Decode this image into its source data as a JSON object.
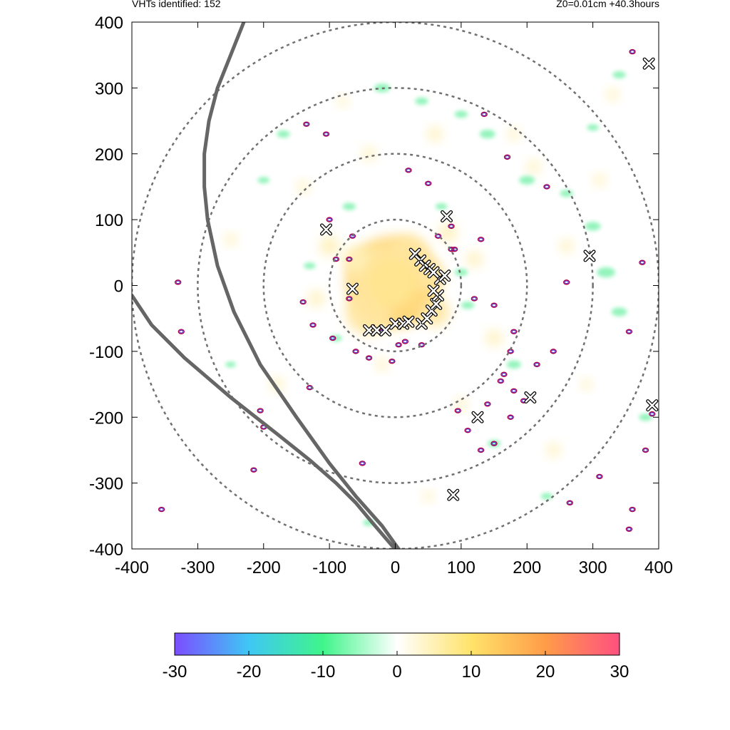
{
  "header": {
    "left": "VHTs identified: 152",
    "right": "Z0=0.01cm  +40.3hours"
  },
  "chart_data": {
    "type": "heatmap",
    "title": "",
    "xlabel": "",
    "ylabel": "",
    "xlim": [
      -400,
      400
    ],
    "ylim": [
      -400,
      400
    ],
    "x_ticks": [
      "-400",
      "-300",
      "-200",
      "-100",
      "0",
      "100",
      "200",
      "300",
      "400"
    ],
    "y_ticks": [
      "400",
      "300",
      "200",
      "100",
      "0",
      "-100",
      "-200",
      "-300",
      "-400"
    ],
    "grid": false,
    "range_rings": [
      100,
      200,
      300,
      400
    ],
    "vhts_identified": 152,
    "colorbar": {
      "min": -30,
      "max": 30,
      "ticks": [
        "-30",
        "-20",
        "-10",
        "0",
        "10",
        "20",
        "30"
      ],
      "colors": [
        "#7b4dff",
        "#3fc7f5",
        "#3ff58a",
        "#ffffff",
        "#ffe36a",
        "#ff9c48",
        "#ff5080"
      ]
    },
    "vht_markers": [
      [
        -105,
        85
      ],
      [
        -65,
        -5
      ],
      [
        -40,
        -68
      ],
      [
        -28,
        -68
      ],
      [
        -15,
        -68
      ],
      [
        0,
        -58
      ],
      [
        12,
        -58
      ],
      [
        20,
        -55
      ],
      [
        40,
        -58
      ],
      [
        48,
        -50
      ],
      [
        55,
        -38
      ],
      [
        62,
        -28
      ],
      [
        65,
        -15
      ],
      [
        58,
        -8
      ],
      [
        68,
        10
      ],
      [
        75,
        15
      ],
      [
        30,
        48
      ],
      [
        38,
        38
      ],
      [
        45,
        30
      ],
      [
        52,
        25
      ],
      [
        58,
        20
      ],
      [
        78,
        105
      ],
      [
        295,
        45
      ],
      [
        385,
        337
      ],
      [
        125,
        -200
      ],
      [
        205,
        -170
      ],
      [
        390,
        -182
      ],
      [
        88,
        -318
      ]
    ],
    "positive_blobs": [
      [
        -5,
        5,
        70
      ],
      [
        15,
        -10,
        45
      ],
      [
        -30,
        20,
        40
      ],
      [
        -40,
        -40,
        35
      ],
      [
        20,
        45,
        32
      ],
      [
        50,
        15,
        25
      ],
      [
        -60,
        40,
        20
      ],
      [
        60,
        -40,
        22
      ],
      [
        -100,
        60,
        15
      ],
      [
        80,
        80,
        14
      ],
      [
        120,
        40,
        12
      ],
      [
        -120,
        -20,
        12
      ],
      [
        150,
        -80,
        12
      ],
      [
        -40,
        200,
        10
      ],
      [
        60,
        230,
        11
      ],
      [
        210,
        180,
        10
      ],
      [
        310,
        160,
        9
      ],
      [
        -250,
        70,
        9
      ],
      [
        -180,
        -150,
        10
      ],
      [
        240,
        -250,
        10
      ],
      [
        -20,
        -120,
        9
      ],
      [
        100,
        -180,
        9
      ],
      [
        260,
        60,
        10
      ],
      [
        330,
        290,
        9
      ],
      [
        -140,
        150,
        9
      ],
      [
        180,
        230,
        9
      ],
      [
        -80,
        280,
        8
      ],
      [
        290,
        -150,
        8
      ],
      [
        50,
        -320,
        8
      ]
    ],
    "negative_blobs": [
      [
        -20,
        300,
        12
      ],
      [
        40,
        280,
        10
      ],
      [
        100,
        260,
        10
      ],
      [
        140,
        230,
        12
      ],
      [
        200,
        160,
        12
      ],
      [
        260,
        140,
        10
      ],
      [
        300,
        90,
        12
      ],
      [
        320,
        20,
        14
      ],
      [
        340,
        -40,
        12
      ],
      [
        -170,
        230,
        10
      ],
      [
        -200,
        160,
        9
      ],
      [
        -250,
        -120,
        8
      ],
      [
        180,
        -120,
        11
      ],
      [
        150,
        -240,
        10
      ],
      [
        70,
        120,
        9
      ],
      [
        -70,
        120,
        10
      ],
      [
        -90,
        -80,
        9
      ],
      [
        100,
        20,
        10
      ],
      [
        110,
        -30,
        10
      ],
      [
        -130,
        30,
        9
      ],
      [
        380,
        -200,
        10
      ],
      [
        230,
        -320,
        9
      ],
      [
        -40,
        -360,
        9
      ],
      [
        340,
        320,
        10
      ],
      [
        300,
        240,
        9
      ]
    ],
    "contours": [
      [
        -135,
        245
      ],
      [
        -105,
        230
      ],
      [
        20,
        175
      ],
      [
        50,
        155
      ],
      [
        135,
        260
      ],
      [
        170,
        195
      ],
      [
        230,
        150
      ],
      [
        -65,
        75
      ],
      [
        -90,
        40
      ],
      [
        -70,
        -20
      ],
      [
        -60,
        -100
      ],
      [
        -40,
        -110
      ],
      [
        15,
        -85
      ],
      [
        5,
        -90
      ],
      [
        85,
        55
      ],
      [
        130,
        70
      ],
      [
        150,
        -30
      ],
      [
        180,
        -70
      ],
      [
        175,
        -100
      ],
      [
        165,
        -135
      ],
      [
        160,
        -145
      ],
      [
        215,
        -120
      ],
      [
        240,
        -100
      ],
      [
        180,
        -160
      ],
      [
        175,
        -200
      ],
      [
        95,
        -190
      ],
      [
        110,
        -220
      ],
      [
        130,
        -250
      ],
      [
        -200,
        -215
      ],
      [
        -95,
        -80
      ],
      [
        260,
        5
      ],
      [
        355,
        -70
      ],
      [
        390,
        -195
      ],
      [
        380,
        -250
      ],
      [
        360,
        -340
      ],
      [
        355,
        -370
      ],
      [
        265,
        -330
      ],
      [
        310,
        -290
      ],
      [
        375,
        35
      ],
      [
        360,
        355
      ],
      [
        -130,
        -155
      ],
      [
        -205,
        -190
      ],
      [
        -355,
        -340
      ],
      [
        -215,
        -280
      ],
      [
        -50,
        -270
      ],
      [
        -20,
        -70
      ],
      [
        40,
        -90
      ],
      [
        65,
        75
      ],
      [
        85,
        90
      ],
      [
        120,
        -20
      ],
      [
        -70,
        40
      ],
      [
        -100,
        100
      ],
      [
        90,
        55
      ],
      [
        -125,
        -60
      ],
      [
        -140,
        -25
      ],
      [
        -5,
        -115
      ],
      [
        195,
        -175
      ],
      [
        140,
        -180
      ],
      [
        150,
        -240
      ],
      [
        -330,
        5
      ],
      [
        -325,
        -70
      ]
    ],
    "tracks": [
      [
        [
          -230,
          400
        ],
        [
          -250,
          350
        ],
        [
          -270,
          300
        ],
        [
          -283,
          250
        ],
        [
          -290,
          200
        ],
        [
          -290,
          150
        ],
        [
          -285,
          100
        ],
        [
          -270,
          30
        ],
        [
          -245,
          -40
        ],
        [
          -205,
          -120
        ],
        [
          -150,
          -200
        ],
        [
          -100,
          -270
        ],
        [
          -60,
          -320
        ],
        [
          -20,
          -365
        ],
        [
          5,
          -400
        ]
      ],
      [
        [
          -400,
          -15
        ],
        [
          -370,
          -60
        ],
        [
          -320,
          -110
        ],
        [
          -250,
          -170
        ],
        [
          -180,
          -225
        ],
        [
          -130,
          -265
        ],
        [
          -90,
          -300
        ],
        [
          -60,
          -330
        ],
        [
          -35,
          -360
        ],
        [
          -5,
          -395
        ],
        [
          0,
          -400
        ]
      ]
    ]
  }
}
